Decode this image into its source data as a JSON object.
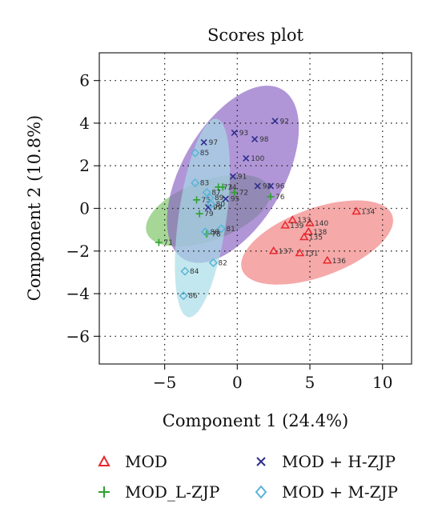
{
  "chart_data": {
    "type": "scatter",
    "title": "Scores plot",
    "xlabel": "Component 1 (24.4%)",
    "ylabel": "Component 2 (10.8%)",
    "xlim": [
      -9.5,
      12
    ],
    "ylim": [
      -7.3,
      7.3
    ],
    "x_ticks": [
      -5,
      0,
      5,
      10
    ],
    "y_ticks": [
      -6,
      -4,
      -2,
      0,
      2,
      4,
      6
    ],
    "grid": true,
    "legend_position": "bottom",
    "series": [
      {
        "name": "MOD",
        "marker": "triangle",
        "color": "#e8282e",
        "fill": "#f08080",
        "ellipse": {
          "cx": 5.5,
          "cy": -1.6,
          "rx": 5.5,
          "ry": 1.6,
          "angle_deg": 20
        },
        "points": [
          {
            "label": "134",
            "x": 8.2,
            "y": -0.15
          },
          {
            "label": "140",
            "x": 5.0,
            "y": -0.7
          },
          {
            "label": "133",
            "x": 3.8,
            "y": -0.55
          },
          {
            "label": "139",
            "x": 3.3,
            "y": -0.8
          },
          {
            "label": "138",
            "x": 4.9,
            "y": -1.1
          },
          {
            "label": "135",
            "x": 4.6,
            "y": -1.35
          },
          {
            "label": "137",
            "x": 2.5,
            "y": -2.0
          },
          {
            "label": "131",
            "x": 4.3,
            "y": -2.1
          },
          {
            "label": "136",
            "x": 6.2,
            "y": -2.45
          }
        ]
      },
      {
        "name": "MOD_L-ZJP",
        "marker": "plus",
        "color": "#2ea02e",
        "fill": "#7cc466",
        "ellipse": {
          "cx": -2.0,
          "cy": -0.1,
          "rx": 4.5,
          "ry": 1.4,
          "angle_deg": 20
        },
        "points": [
          {
            "label": "71",
            "x": -5.4,
            "y": -1.6
          },
          {
            "label": "73",
            "x": -1.3,
            "y": 1.0
          },
          {
            "label": "74",
            "x": -1.0,
            "y": 1.0
          },
          {
            "label": "75",
            "x": -2.8,
            "y": 0.4
          },
          {
            "label": "79",
            "x": -2.6,
            "y": -0.25
          },
          {
            "label": "76",
            "x": 2.3,
            "y": 0.55
          },
          {
            "label": "72",
            "x": -0.2,
            "y": 0.75
          },
          {
            "label": "78",
            "x": -2.1,
            "y": -1.2
          }
        ]
      },
      {
        "name": "MOD + H-ZJP",
        "marker": "x",
        "color": "#2e2e8c",
        "fill": "#8a64c4",
        "ellipse": {
          "cx": -0.3,
          "cy": 1.6,
          "rx": 3.5,
          "ry": 4.6,
          "angle_deg": -30
        },
        "points": [
          {
            "label": "92",
            "x": 2.6,
            "y": 4.1
          },
          {
            "label": "93",
            "x": -0.2,
            "y": 3.55
          },
          {
            "label": "98",
            "x": 1.2,
            "y": 3.25
          },
          {
            "label": "97",
            "x": -2.3,
            "y": 3.1
          },
          {
            "label": "100",
            "x": 0.6,
            "y": 2.35
          },
          {
            "label": "91",
            "x": -0.3,
            "y": 1.5
          },
          {
            "label": "94",
            "x": 1.4,
            "y": 1.05
          },
          {
            "label": "96",
            "x": 2.3,
            "y": 1.05
          },
          {
            "label": "95",
            "x": -0.8,
            "y": 0.45
          },
          {
            "label": "99",
            "x": -2.0,
            "y": 0.05
          }
        ]
      },
      {
        "name": "MOD + M-ZJP",
        "marker": "diamond",
        "color": "#5ab4d8",
        "fill": "#a6dce6",
        "ellipse": {
          "cx": -2.4,
          "cy": -0.45,
          "rx": 1.65,
          "ry": 4.7,
          "angle_deg": -8
        },
        "points": [
          {
            "label": "85",
            "x": -2.9,
            "y": 2.6
          },
          {
            "label": "83",
            "x": -2.9,
            "y": 1.2
          },
          {
            "label": "87",
            "x": -2.1,
            "y": 0.75
          },
          {
            "label": "89",
            "x": -1.9,
            "y": 0.5
          },
          {
            "label": "80",
            "x": -1.8,
            "y": 0.2
          },
          {
            "label": "81",
            "x": -1.1,
            "y": -0.95
          },
          {
            "label": "88",
            "x": -2.2,
            "y": -1.1
          },
          {
            "label": "82",
            "x": -1.65,
            "y": -2.55
          },
          {
            "label": "84",
            "x": -3.6,
            "y": -2.95
          },
          {
            "label": "86",
            "x": -3.7,
            "y": -4.1
          }
        ]
      }
    ]
  }
}
